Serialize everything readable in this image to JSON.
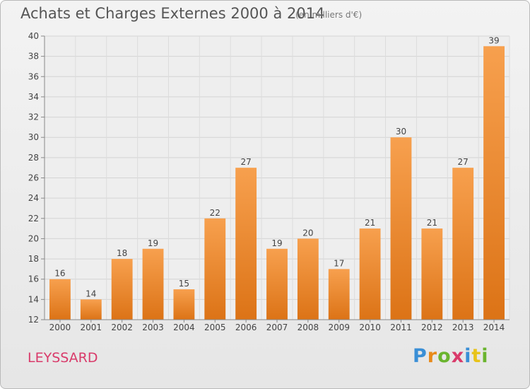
{
  "chart_data": {
    "type": "bar",
    "title": "Achats et Charges Externes 2000 à 2014",
    "subtitle": "(en milliers d'€)",
    "categories": [
      "2000",
      "2001",
      "2002",
      "2003",
      "2004",
      "2005",
      "2006",
      "2007",
      "2008",
      "2009",
      "2010",
      "2011",
      "2012",
      "2013",
      "2014"
    ],
    "values": [
      16,
      14,
      18,
      19,
      15,
      22,
      27,
      19,
      20,
      17,
      21,
      30,
      21,
      27,
      39
    ],
    "ylim": [
      12,
      40
    ],
    "yticks": [
      12,
      14,
      16,
      18,
      20,
      22,
      24,
      26,
      28,
      30,
      32,
      34,
      36,
      38,
      40
    ],
    "grid": true,
    "bar_color": "#e8842a"
  },
  "place": "LEYSSARD",
  "brand": "Proxiti",
  "brand_colors": [
    "#3a8fd6",
    "#e88a1a",
    "#6ab42e",
    "#d93a6a",
    "#3a8fd6",
    "#e8c31a",
    "#6ab42e"
  ]
}
